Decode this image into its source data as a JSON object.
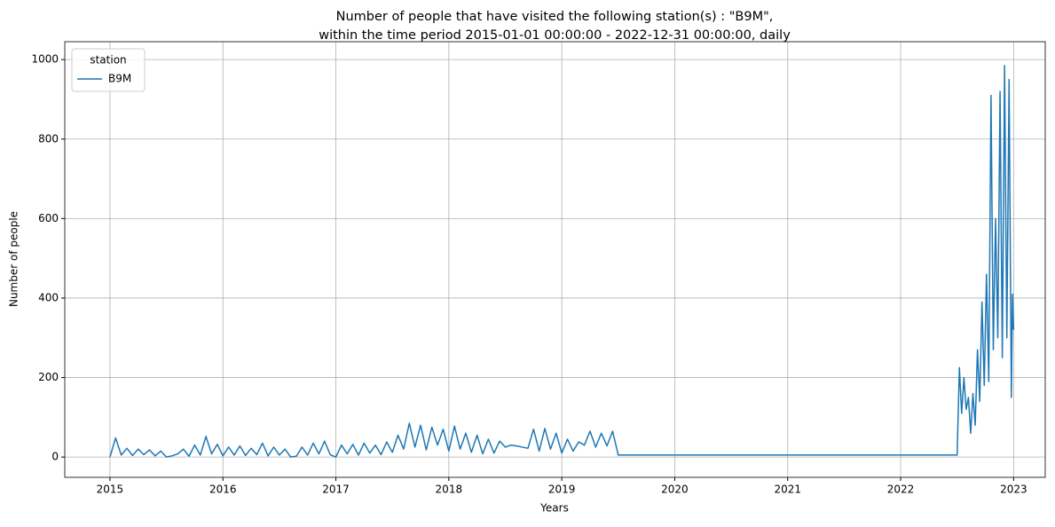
{
  "chart_data": {
    "type": "line",
    "title": [
      "Number of people that have visited the following station(s) : \"B9M\",",
      "within the time period 2015-01-01 00:00:00 - 2022-12-31 00:00:00, daily"
    ],
    "x_label": "Years",
    "y_label": "Number of people",
    "legend_title": "station",
    "legend_position": "upper left",
    "grid": true,
    "x": [
      2015.0,
      2015.05,
      2015.1,
      2015.15,
      2015.2,
      2015.25,
      2015.3,
      2015.35,
      2015.4,
      2015.45,
      2015.5,
      2015.55,
      2015.6,
      2015.65,
      2015.7,
      2015.75,
      2015.8,
      2015.85,
      2015.9,
      2015.95,
      2016.0,
      2016.05,
      2016.1,
      2016.15,
      2016.2,
      2016.25,
      2016.3,
      2016.35,
      2016.4,
      2016.45,
      2016.5,
      2016.55,
      2016.6,
      2016.65,
      2016.7,
      2016.75,
      2016.8,
      2016.85,
      2016.9,
      2016.95,
      2017.0,
      2017.05,
      2017.1,
      2017.15,
      2017.2,
      2017.25,
      2017.3,
      2017.35,
      2017.4,
      2017.45,
      2017.5,
      2017.55,
      2017.6,
      2017.65,
      2017.7,
      2017.75,
      2017.8,
      2017.85,
      2017.9,
      2017.95,
      2018.0,
      2018.05,
      2018.1,
      2018.15,
      2018.2,
      2018.25,
      2018.3,
      2018.35,
      2018.4,
      2018.45,
      2018.5,
      2018.55,
      2018.6,
      2018.65,
      2018.7,
      2018.75,
      2018.8,
      2018.85,
      2018.9,
      2018.95,
      2019.0,
      2019.05,
      2019.1,
      2019.15,
      2019.2,
      2019.25,
      2019.3,
      2019.35,
      2019.4,
      2019.45,
      2019.5,
      2022.5,
      2022.52,
      2022.54,
      2022.56,
      2022.58,
      2022.6,
      2022.62,
      2022.64,
      2022.66,
      2022.68,
      2022.7,
      2022.72,
      2022.74,
      2022.76,
      2022.78,
      2022.8,
      2022.82,
      2022.84,
      2022.86,
      2022.88,
      2022.9,
      2022.92,
      2022.94,
      2022.96,
      2022.98,
      2022.99,
      2023.0
    ],
    "series": [
      {
        "name": "B9M",
        "color": "#1f77b4",
        "values": [
          0,
          48,
          5,
          22,
          4,
          20,
          6,
          18,
          3,
          15,
          0,
          3,
          8,
          20,
          2,
          30,
          5,
          52,
          8,
          32,
          3,
          25,
          5,
          28,
          4,
          22,
          6,
          35,
          3,
          25,
          5,
          20,
          0,
          2,
          25,
          5,
          35,
          8,
          40,
          6,
          0,
          30,
          8,
          32,
          5,
          35,
          10,
          30,
          6,
          38,
          12,
          55,
          20,
          85,
          25,
          80,
          18,
          75,
          30,
          70,
          15,
          78,
          20,
          60,
          12,
          55,
          8,
          45,
          10,
          40,
          25,
          30,
          28,
          25,
          22,
          70,
          15,
          72,
          20,
          60,
          10,
          45,
          15,
          38,
          30,
          65,
          25,
          60,
          28,
          65,
          5,
          5,
          225,
          110,
          200,
          120,
          150,
          60,
          160,
          80,
          270,
          140,
          390,
          180,
          460,
          190,
          910,
          270,
          600,
          300,
          920,
          250,
          985,
          300,
          950,
          150,
          410,
          320
        ]
      }
    ],
    "xlim": [
      2014.6,
      2023.28
    ],
    "xticks": [
      2015,
      2016,
      2017,
      2018,
      2019,
      2020,
      2021,
      2022,
      2023
    ],
    "ylim": [
      -51,
      1045
    ],
    "yticks": [
      0,
      200,
      400,
      600,
      800,
      1000
    ]
  }
}
